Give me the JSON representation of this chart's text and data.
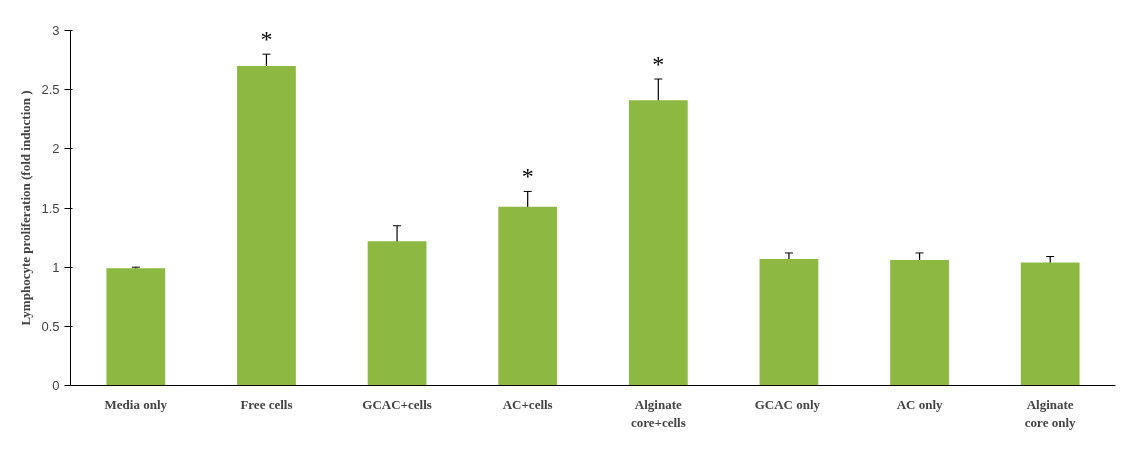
{
  "chart_data": {
    "type": "bar",
    "ylabel": "Lymphocyte proliferation (fold induction )",
    "categories": [
      "Media only",
      "Free cells",
      "GCAC+cells",
      "AC+cells",
      "Alginate core+cells",
      "GCAC  only",
      "AC only",
      "Alginate core only"
    ],
    "values": [
      0.99,
      2.7,
      1.22,
      1.51,
      2.41,
      1.07,
      1.06,
      1.04
    ],
    "errors": [
      0.01,
      0.1,
      0.13,
      0.13,
      0.18,
      0.05,
      0.06,
      0.05
    ],
    "color": "#8db842",
    "ylim": [
      0,
      3
    ],
    "yticks": [
      0,
      0.5,
      1,
      1.5,
      2,
      2.5,
      3
    ],
    "grid": false,
    "value_labels": [
      null,
      "*",
      null,
      "*",
      "*",
      null,
      null,
      null
    ]
  }
}
